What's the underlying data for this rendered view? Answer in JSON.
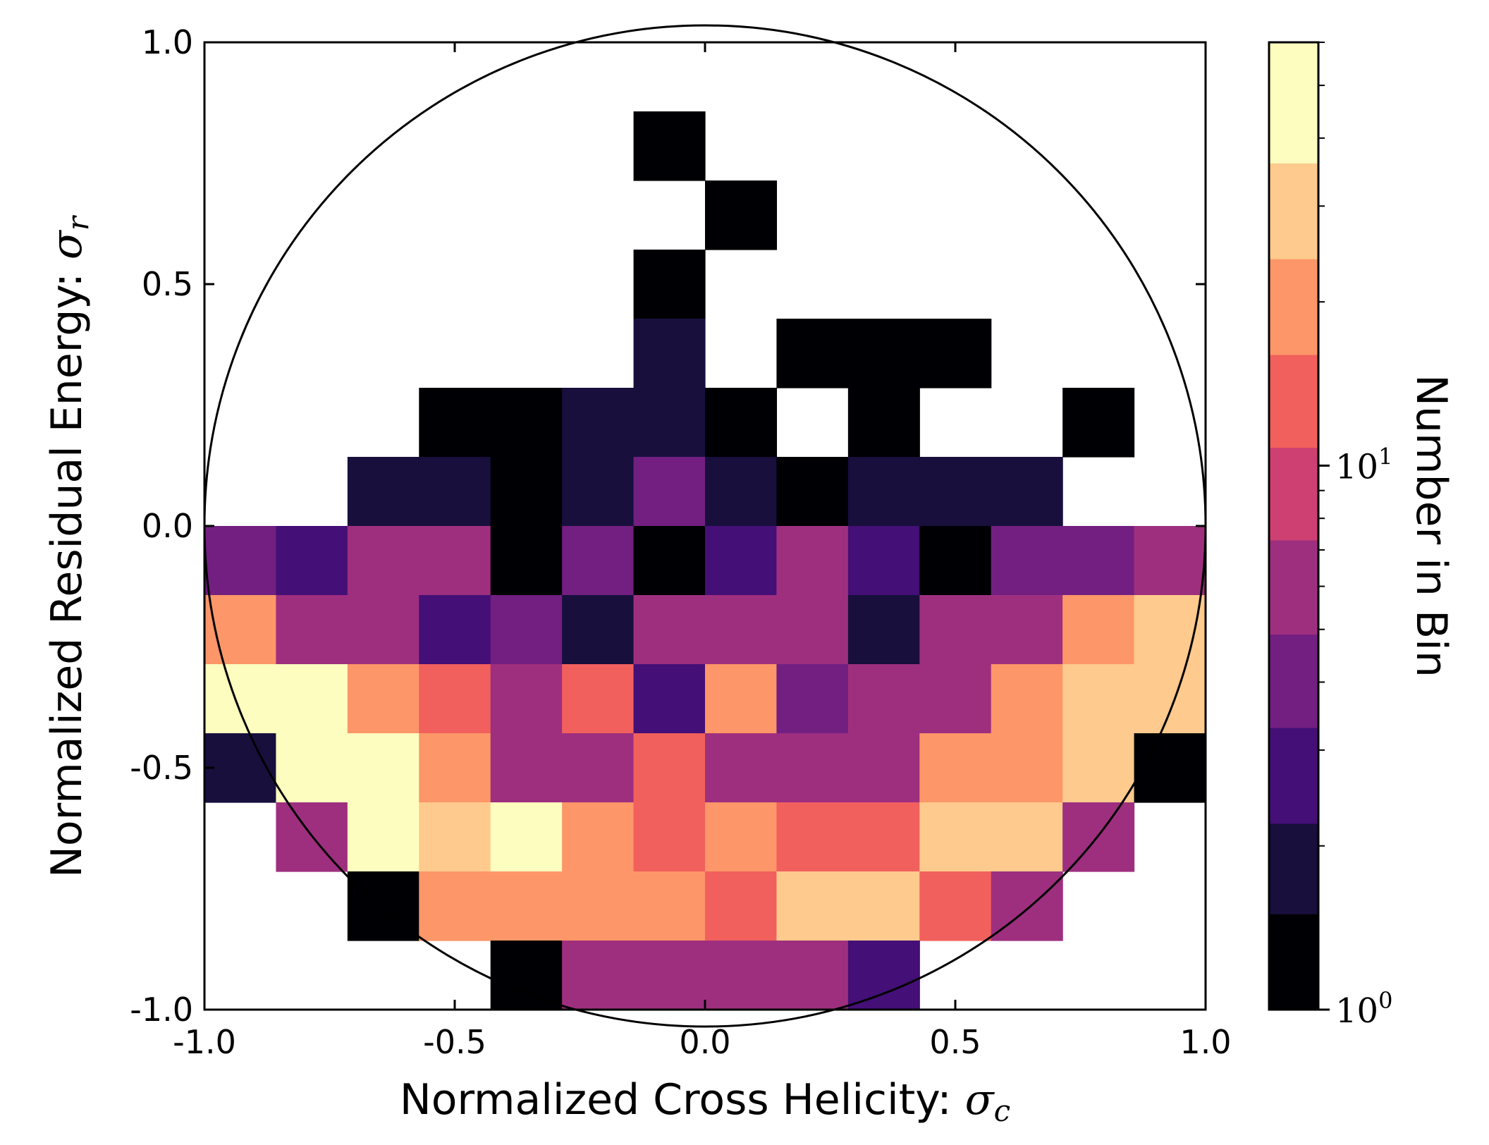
{
  "chart_data": {
    "type": "heatmap",
    "title": "",
    "xlabel": "Normalized Cross Helicity: ",
    "xlabel_symbol": "σ",
    "xlabel_sub": "c",
    "ylabel": "Normalized Residual Energy: ",
    "ylabel_symbol": "σ",
    "ylabel_sub": "r",
    "xlim": [
      -1.0,
      1.0
    ],
    "ylim": [
      -1.0,
      1.0
    ],
    "xticks": [
      -1.0,
      -0.5,
      0.0,
      0.5,
      1.0
    ],
    "xtick_labels": [
      "-1.0",
      "-0.5",
      "0.0",
      "0.5",
      "1.0"
    ],
    "yticks": [
      -1.0,
      -0.5,
      0.0,
      0.5,
      1.0
    ],
    "ytick_labels": [
      "-1.0",
      "-0.5",
      "0.0",
      "0.5",
      "1.0"
    ],
    "bins": 14,
    "bin_width": 0.142857,
    "overlay": "unit circle",
    "colorbar": {
      "label": "Number in Bin",
      "scale": "log",
      "range": [
        1,
        60
      ],
      "major_ticks": [
        1,
        10
      ],
      "major_tick_labels_base": [
        "10",
        "10"
      ],
      "major_tick_labels_exp": [
        "0",
        "1"
      ],
      "colors": [
        "#000004",
        "#180f3d",
        "#440f76",
        "#721f81",
        "#9e2f7f",
        "#cd4071",
        "#f1605d",
        "#fd9668",
        "#feca8d",
        "#fcfdbf"
      ],
      "level_edges": [
        1,
        1.5,
        2.2,
        3.3,
        4.9,
        7.3,
        10.8,
        16,
        24,
        36,
        60
      ]
    },
    "rows_top_to_bottom": [
      [
        0,
        0,
        0,
        0,
        0,
        0,
        0,
        0,
        0,
        0,
        0,
        0,
        0,
        0
      ],
      [
        0,
        0,
        0,
        0,
        0,
        0,
        1,
        0,
        0,
        0,
        0,
        0,
        0,
        0
      ],
      [
        0,
        0,
        0,
        0,
        0,
        0,
        0,
        1,
        0,
        0,
        0,
        0,
        0,
        0
      ],
      [
        0,
        0,
        0,
        0,
        0,
        0,
        1,
        0,
        0,
        0,
        0,
        0,
        0,
        0
      ],
      [
        0,
        0,
        0,
        0,
        0,
        0,
        2,
        0,
        1,
        1,
        1,
        0,
        0,
        0
      ],
      [
        0,
        0,
        0,
        1,
        1,
        2,
        2,
        1,
        0,
        1,
        0,
        0,
        1,
        0
      ],
      [
        0,
        0,
        2,
        2,
        1,
        2,
        4,
        2,
        1,
        2,
        2,
        2,
        0,
        0
      ],
      [
        4,
        3,
        5,
        5,
        1,
        4,
        1,
        3,
        5,
        3,
        1,
        4,
        4,
        5
      ],
      [
        20,
        7,
        7,
        3,
        4,
        2,
        5,
        5,
        5,
        2,
        5,
        7,
        20,
        33
      ],
      [
        60,
        60,
        20,
        11,
        5,
        11,
        3,
        20,
        4,
        7,
        5,
        20,
        33,
        33
      ],
      [
        2,
        60,
        60,
        20,
        5,
        7,
        11,
        5,
        7,
        7,
        20,
        20,
        33,
        1
      ],
      [
        0,
        7,
        60,
        33,
        60,
        20,
        11,
        20,
        11,
        11,
        33,
        33,
        5,
        0
      ],
      [
        0,
        0,
        1,
        20,
        20,
        20,
        20,
        11,
        33,
        33,
        11,
        5,
        0,
        0
      ],
      [
        0,
        0,
        0,
        0,
        1,
        5,
        7,
        5,
        7,
        3,
        0,
        0,
        0,
        0
      ]
    ]
  }
}
